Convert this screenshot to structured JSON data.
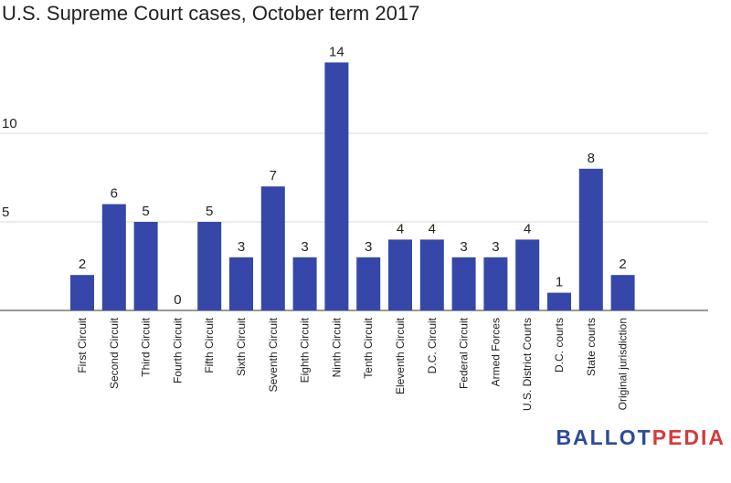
{
  "chart_data": {
    "type": "bar",
    "title": "U.S. Supreme Court cases, October term 2017",
    "xlabel": "",
    "ylabel": "",
    "ylim": [
      0,
      14
    ],
    "y_ticks": [
      5,
      10
    ],
    "grid": true,
    "bar_color": "#3547a9",
    "categories": [
      "First Circuit",
      "Second Circuit",
      "Third Circuit",
      "Fourth Circuit",
      "Fifth Circuit",
      "Sixth Circuit",
      "Seventh Circuit",
      "Eighth Circuit",
      "Ninth Circuit",
      "Tenth Circuit",
      "Eleventh Circuit",
      "D.C. Circuit",
      "Federal Circuit",
      "Armed Forces",
      "U.S. District Courts",
      "D.C. courts",
      "State courts",
      "Original jurisdiction"
    ],
    "values": [
      2,
      6,
      5,
      0,
      5,
      3,
      7,
      3,
      14,
      3,
      4,
      4,
      3,
      3,
      4,
      1,
      8,
      2
    ]
  },
  "branding": {
    "part1": "BALLOT",
    "part2": "PEDIA",
    "color1": "#2b4a9a",
    "color2": "#d63a3a"
  }
}
